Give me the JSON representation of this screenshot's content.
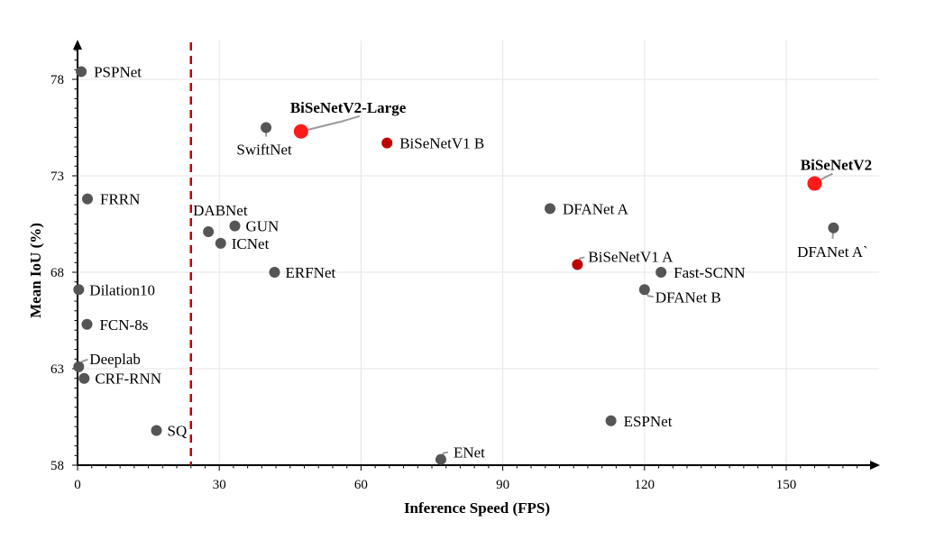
{
  "chart_data": {
    "type": "scatter",
    "xlabel": "Inference Speed (FPS)",
    "ylabel": "Mean IoU (%)",
    "xlim": [
      0,
      170
    ],
    "ylim": [
      58,
      80
    ],
    "xticks": [
      0,
      30,
      60,
      90,
      120,
      150
    ],
    "yticks": [
      58,
      63,
      68,
      73,
      78
    ],
    "grid": true,
    "realtime_threshold_fps": 24,
    "colors": {
      "baseline": "#555555",
      "bisenetv1": "#c00000",
      "bisenetv2": "#ff1a1a",
      "threshold": "#c00000"
    },
    "points": [
      {
        "name": "PSPNet",
        "x": 0.78,
        "y": 78.4,
        "group": "baseline"
      },
      {
        "name": "FRRN",
        "x": 2.1,
        "y": 71.8,
        "group": "baseline"
      },
      {
        "name": "Dilation10",
        "x": 0.25,
        "y": 67.1,
        "group": "baseline"
      },
      {
        "name": "FCN-8s",
        "x": 2.0,
        "y": 65.3,
        "group": "baseline"
      },
      {
        "name": "Deeplab",
        "x": 0.25,
        "y": 63.1,
        "group": "baseline"
      },
      {
        "name": "CRF-RNN",
        "x": 1.4,
        "y": 62.5,
        "group": "baseline"
      },
      {
        "name": "SQ",
        "x": 16.7,
        "y": 59.8,
        "group": "baseline"
      },
      {
        "name": "DABNet",
        "x": 27.7,
        "y": 70.1,
        "group": "baseline"
      },
      {
        "name": "GUN",
        "x": 33.3,
        "y": 70.4,
        "group": "baseline"
      },
      {
        "name": "ICNet",
        "x": 30.3,
        "y": 69.5,
        "group": "baseline"
      },
      {
        "name": "ERFNet",
        "x": 41.7,
        "y": 68.0,
        "group": "baseline"
      },
      {
        "name": "SwiftNet",
        "x": 39.9,
        "y": 75.5,
        "group": "baseline"
      },
      {
        "name": "ENet",
        "x": 76.9,
        "y": 58.3,
        "group": "baseline"
      },
      {
        "name": "ESPNet",
        "x": 112.9,
        "y": 60.3,
        "group": "baseline"
      },
      {
        "name": "DFANet A",
        "x": 100.0,
        "y": 71.3,
        "group": "baseline"
      },
      {
        "name": "DFANet B",
        "x": 120.0,
        "y": 67.1,
        "group": "baseline"
      },
      {
        "name": "DFANet A`",
        "x": 160.0,
        "y": 70.3,
        "group": "baseline"
      },
      {
        "name": "Fast-SCNN",
        "x": 123.5,
        "y": 68.0,
        "group": "baseline"
      },
      {
        "name": "BiSeNetV1 A",
        "x": 105.8,
        "y": 68.4,
        "group": "bisenetv1"
      },
      {
        "name": "BiSeNetV1 B",
        "x": 65.5,
        "y": 74.7,
        "group": "bisenetv1"
      },
      {
        "name": "BiSeNetV2",
        "x": 156.0,
        "y": 72.6,
        "group": "bisenetv2"
      },
      {
        "name": "BiSeNetV2-Large",
        "x": 47.3,
        "y": 75.3,
        "group": "bisenetv2"
      }
    ]
  }
}
